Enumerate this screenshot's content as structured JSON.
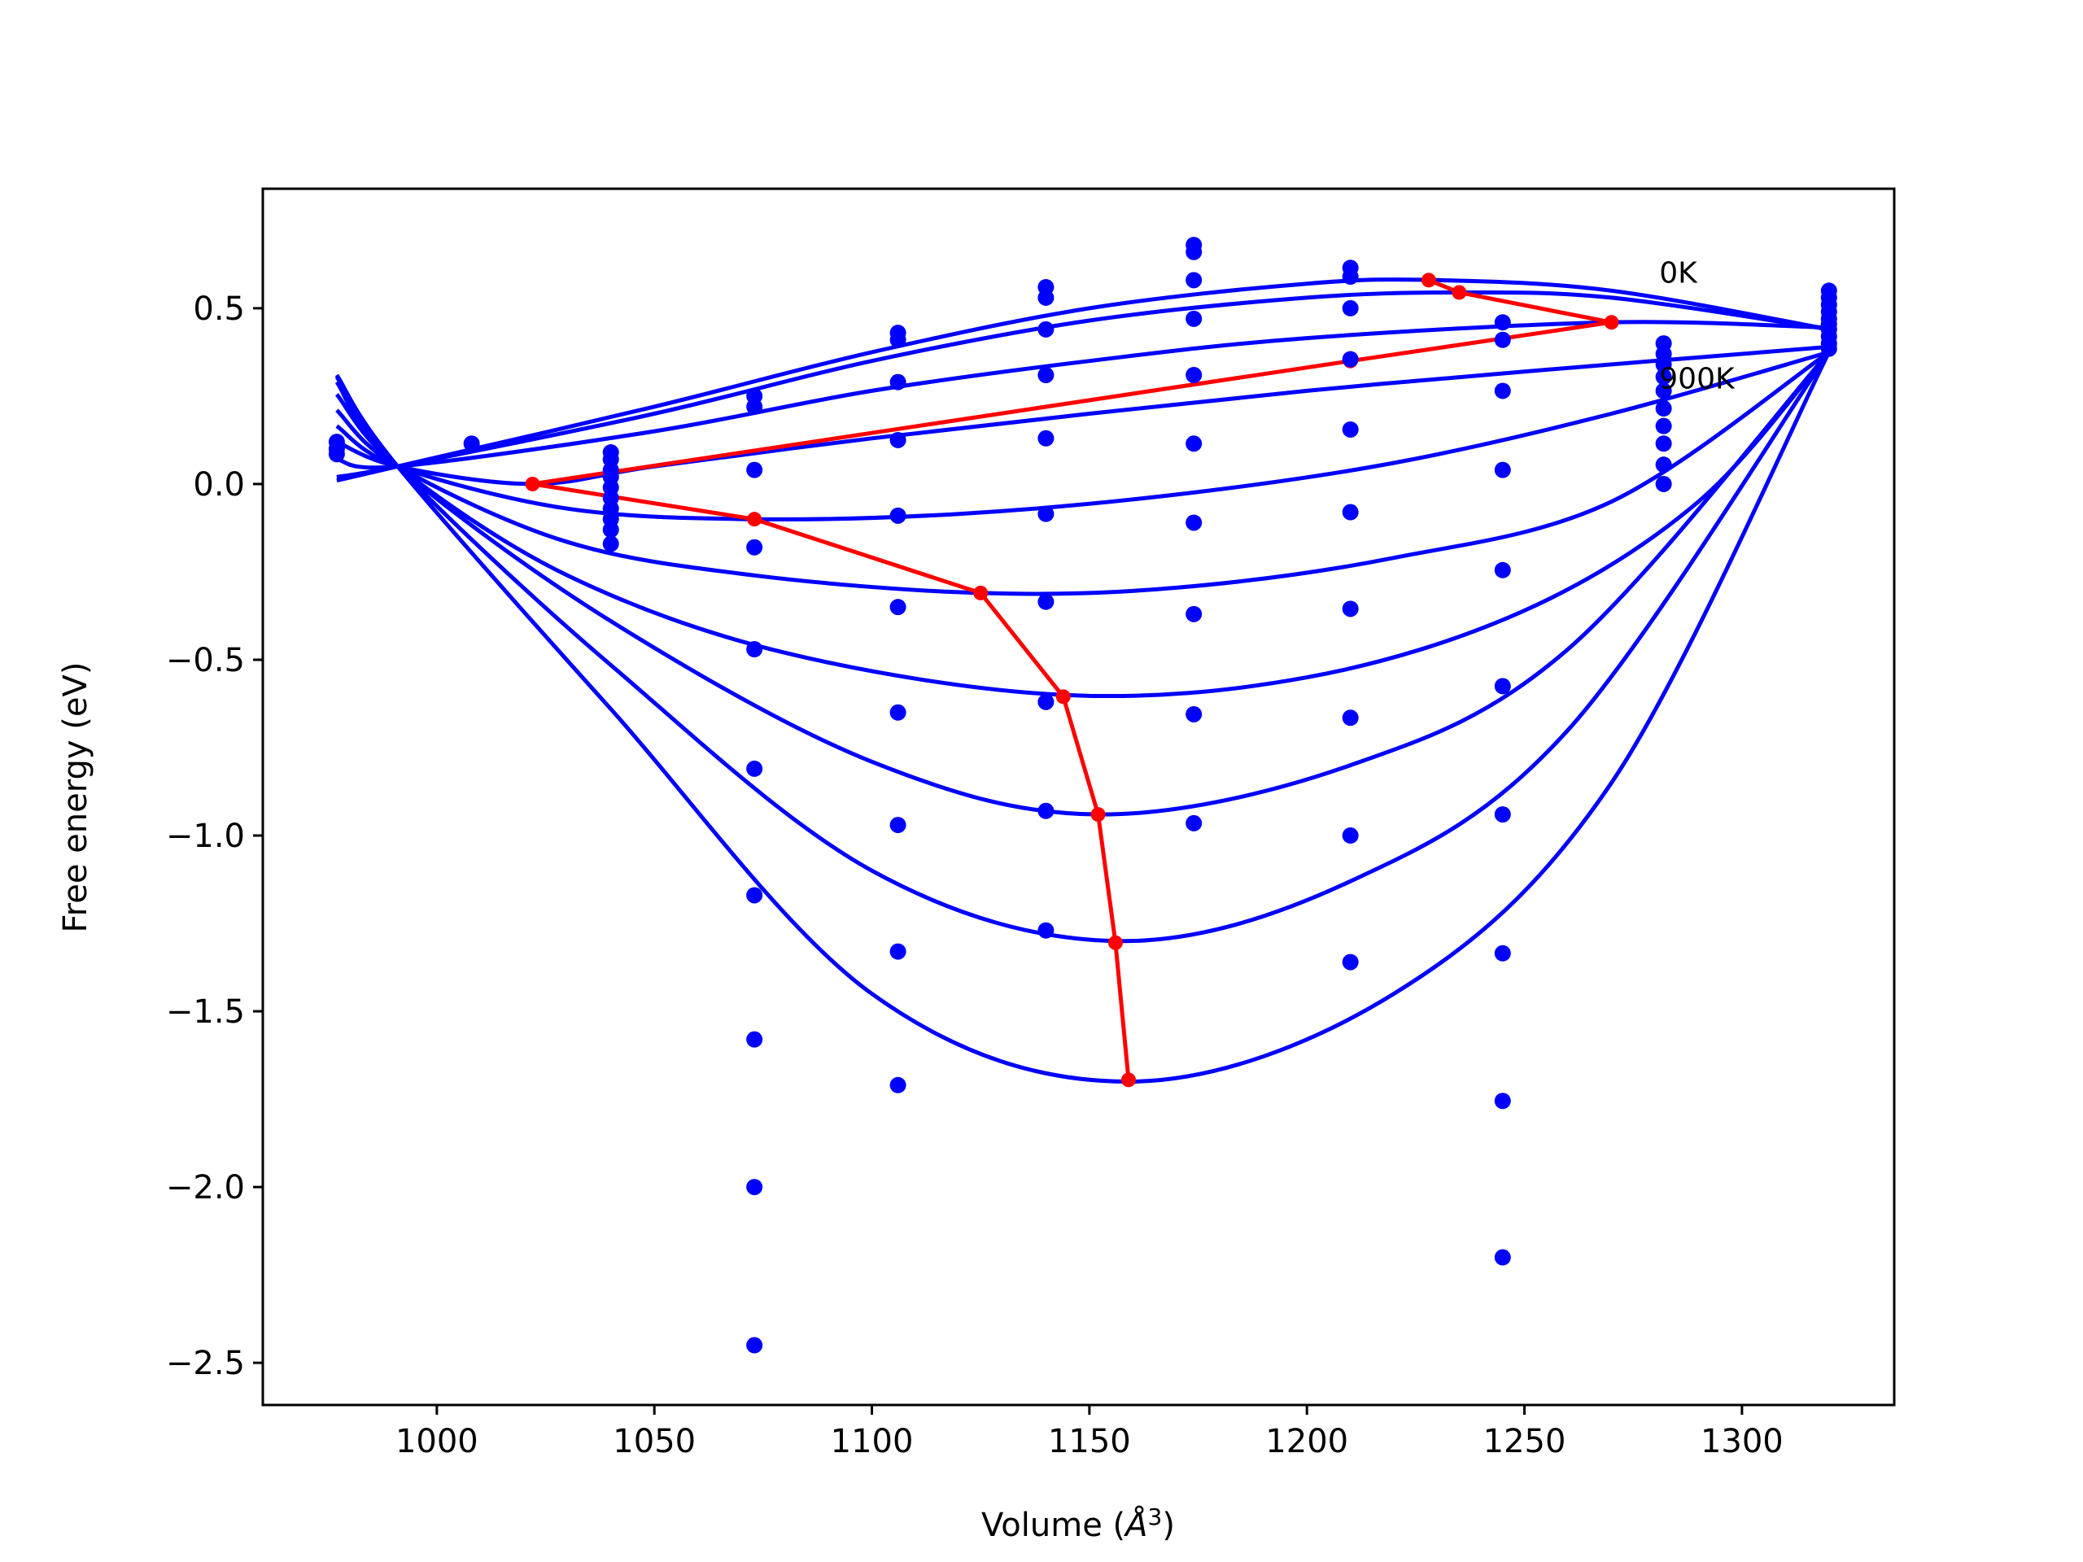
{
  "chart_data": {
    "type": "scatter",
    "xlabel": "Volume (",
    "xlabel_unit": "Å",
    "xlabel_sup": "3",
    "xlabel_close": ")",
    "ylabel": "Free energy (eV)",
    "xlim": [
      960,
      1335
    ],
    "ylim": [
      -2.62,
      0.84
    ],
    "grid": false,
    "xticks": [
      1000,
      1050,
      1100,
      1150,
      1200,
      1250,
      1300
    ],
    "xtick_labels": [
      "1000",
      "1050",
      "1100",
      "1150",
      "1200",
      "1250",
      "1300"
    ],
    "yticks": [
      0.5,
      0.0,
      -0.5,
      -1.0,
      -1.5,
      -2.0,
      -2.5
    ],
    "ytick_labels": [
      "0.5",
      "0.0",
      "−0.5",
      "−1.0",
      "−1.5",
      "−2.0",
      "−2.5"
    ],
    "annotations": [
      {
        "text": "0K",
        "x": 1281,
        "y": 0.6
      },
      {
        "text": "900K",
        "x": 1281,
        "y": 0.3
      }
    ],
    "colors": {
      "points": "#0000ff",
      "curves": "#0000ff",
      "minimum_path": "#ff0000",
      "axes": "#000000"
    },
    "points": [
      {
        "x": 977,
        "y": 0.085
      },
      {
        "x": 977,
        "y": 0.1
      },
      {
        "x": 977,
        "y": 0.12
      },
      {
        "x": 1008,
        "y": 0.115
      },
      {
        "x": 1040,
        "y": 0.09
      },
      {
        "x": 1040,
        "y": 0.07
      },
      {
        "x": 1040,
        "y": 0.04
      },
      {
        "x": 1040,
        "y": 0.02
      },
      {
        "x": 1040,
        "y": -0.01
      },
      {
        "x": 1040,
        "y": -0.04
      },
      {
        "x": 1040,
        "y": -0.07
      },
      {
        "x": 1040,
        "y": -0.1
      },
      {
        "x": 1040,
        "y": -0.13
      },
      {
        "x": 1040,
        "y": -0.17
      },
      {
        "x": 1073,
        "y": 0.25
      },
      {
        "x": 1073,
        "y": 0.22
      },
      {
        "x": 1073,
        "y": 0.04
      },
      {
        "x": 1073,
        "y": -0.18
      },
      {
        "x": 1073,
        "y": -0.47
      },
      {
        "x": 1073,
        "y": -0.81
      },
      {
        "x": 1073,
        "y": -1.17
      },
      {
        "x": 1073,
        "y": -1.58
      },
      {
        "x": 1073,
        "y": -2.0
      },
      {
        "x": 1073,
        "y": -2.45
      },
      {
        "x": 1106,
        "y": 0.43
      },
      {
        "x": 1106,
        "y": 0.41
      },
      {
        "x": 1106,
        "y": 0.29
      },
      {
        "x": 1106,
        "y": 0.125
      },
      {
        "x": 1106,
        "y": -0.09
      },
      {
        "x": 1106,
        "y": -0.35
      },
      {
        "x": 1106,
        "y": -0.65
      },
      {
        "x": 1106,
        "y": -0.97
      },
      {
        "x": 1106,
        "y": -1.33
      },
      {
        "x": 1106,
        "y": -1.71
      },
      {
        "x": 1140,
        "y": 0.56
      },
      {
        "x": 1140,
        "y": 0.53
      },
      {
        "x": 1140,
        "y": 0.44
      },
      {
        "x": 1140,
        "y": 0.31
      },
      {
        "x": 1140,
        "y": 0.13
      },
      {
        "x": 1140,
        "y": -0.085
      },
      {
        "x": 1140,
        "y": -0.335
      },
      {
        "x": 1140,
        "y": -0.62
      },
      {
        "x": 1140,
        "y": -0.93
      },
      {
        "x": 1140,
        "y": -1.27
      },
      {
        "x": 1174,
        "y": 0.68
      },
      {
        "x": 1174,
        "y": 0.66
      },
      {
        "x": 1174,
        "y": 0.58
      },
      {
        "x": 1174,
        "y": 0.47
      },
      {
        "x": 1174,
        "y": 0.31
      },
      {
        "x": 1174,
        "y": 0.115
      },
      {
        "x": 1174,
        "y": -0.11
      },
      {
        "x": 1174,
        "y": -0.37
      },
      {
        "x": 1174,
        "y": -0.655
      },
      {
        "x": 1174,
        "y": -0.965
      },
      {
        "x": 1210,
        "y": 0.615
      },
      {
        "x": 1210,
        "y": 0.59
      },
      {
        "x": 1210,
        "y": 0.5
      },
      {
        "x": 1210,
        "y": 0.355
      },
      {
        "x": 1210,
        "y": 0.155
      },
      {
        "x": 1210,
        "y": -0.08
      },
      {
        "x": 1210,
        "y": -0.355
      },
      {
        "x": 1210,
        "y": -0.665
      },
      {
        "x": 1210,
        "y": -1.0
      },
      {
        "x": 1210,
        "y": -1.36
      },
      {
        "x": 1245,
        "y": 0.46
      },
      {
        "x": 1245,
        "y": 0.41
      },
      {
        "x": 1245,
        "y": 0.265
      },
      {
        "x": 1245,
        "y": 0.04
      },
      {
        "x": 1245,
        "y": -0.245
      },
      {
        "x": 1245,
        "y": -0.575
      },
      {
        "x": 1245,
        "y": -0.94
      },
      {
        "x": 1245,
        "y": -1.335
      },
      {
        "x": 1245,
        "y": -1.755
      },
      {
        "x": 1245,
        "y": -2.2
      },
      {
        "x": 1282,
        "y": 0.4
      },
      {
        "x": 1282,
        "y": 0.37
      },
      {
        "x": 1282,
        "y": 0.34
      },
      {
        "x": 1282,
        "y": 0.305
      },
      {
        "x": 1282,
        "y": 0.265
      },
      {
        "x": 1282,
        "y": 0.215
      },
      {
        "x": 1282,
        "y": 0.165
      },
      {
        "x": 1282,
        "y": 0.115
      },
      {
        "x": 1282,
        "y": 0.055
      },
      {
        "x": 1282,
        "y": 0.0
      },
      {
        "x": 1320,
        "y": 0.55
      },
      {
        "x": 1320,
        "y": 0.53
      },
      {
        "x": 1320,
        "y": 0.51
      },
      {
        "x": 1320,
        "y": 0.49
      },
      {
        "x": 1320,
        "y": 0.47
      },
      {
        "x": 1320,
        "y": 0.455
      },
      {
        "x": 1320,
        "y": 0.44
      },
      {
        "x": 1320,
        "y": 0.42
      },
      {
        "x": 1320,
        "y": 0.4
      },
      {
        "x": 1320,
        "y": 0.385
      }
    ],
    "series": [
      {
        "values": [
          [
            977,
            0.01
          ],
          [
            991,
            0.05
          ],
          [
            1050,
            0.22
          ],
          [
            1100,
            0.375
          ],
          [
            1150,
            0.5
          ],
          [
            1200,
            0.57
          ],
          [
            1230,
            0.58
          ],
          [
            1270,
            0.55
          ],
          [
            1320,
            0.44
          ]
        ]
      },
      {
        "values": [
          [
            977,
            0.02
          ],
          [
            991,
            0.05
          ],
          [
            1050,
            0.2
          ],
          [
            1100,
            0.35
          ],
          [
            1150,
            0.465
          ],
          [
            1200,
            0.53
          ],
          [
            1235,
            0.545
          ],
          [
            1270,
            0.53
          ],
          [
            1320,
            0.44
          ]
        ]
      },
      {
        "values": [
          [
            977,
            0.07
          ],
          [
            991,
            0.05
          ],
          [
            1050,
            0.15
          ],
          [
            1100,
            0.265
          ],
          [
            1150,
            0.35
          ],
          [
            1200,
            0.415
          ],
          [
            1270,
            0.46
          ],
          [
            1320,
            0.445
          ]
        ]
      },
      {
        "values": [
          [
            977,
            0.12
          ],
          [
            991,
            0.05
          ],
          [
            1022,
            0.0
          ],
          [
            1050,
            0.05
          ],
          [
            1100,
            0.13
          ],
          [
            1150,
            0.2
          ],
          [
            1200,
            0.265
          ],
          [
            1250,
            0.32
          ],
          [
            1320,
            0.39
          ]
        ]
      },
      {
        "values": [
          [
            977,
            0.165
          ],
          [
            991,
            0.05
          ],
          [
            1030,
            -0.07
          ],
          [
            1073,
            -0.1
          ],
          [
            1120,
            -0.085
          ],
          [
            1170,
            -0.03
          ],
          [
            1220,
            0.06
          ],
          [
            1270,
            0.2
          ],
          [
            1320,
            0.375
          ]
        ]
      },
      {
        "values": [
          [
            977,
            0.21
          ],
          [
            991,
            0.05
          ],
          [
            1030,
            -0.165
          ],
          [
            1073,
            -0.26
          ],
          [
            1125,
            -0.31
          ],
          [
            1170,
            -0.295
          ],
          [
            1220,
            -0.21
          ],
          [
            1270,
            -0.05
          ],
          [
            1320,
            0.375
          ]
        ]
      },
      {
        "values": [
          [
            977,
            0.255
          ],
          [
            991,
            0.05
          ],
          [
            1030,
            -0.26
          ],
          [
            1080,
            -0.48
          ],
          [
            1144,
            -0.6
          ],
          [
            1200,
            -0.55
          ],
          [
            1250,
            -0.36
          ],
          [
            1290,
            -0.05
          ],
          [
            1320,
            0.375
          ]
        ]
      },
      {
        "values": [
          [
            977,
            0.29
          ],
          [
            991,
            0.05
          ],
          [
            1040,
            -0.39
          ],
          [
            1100,
            -0.79
          ],
          [
            1152,
            -0.94
          ],
          [
            1210,
            -0.8
          ],
          [
            1260,
            -0.47
          ],
          [
            1320,
            0.375
          ]
        ]
      },
      {
        "values": [
          [
            977,
            0.305
          ],
          [
            991,
            0.05
          ],
          [
            1040,
            -0.515
          ],
          [
            1100,
            -1.1
          ],
          [
            1156,
            -1.3
          ],
          [
            1210,
            -1.13
          ],
          [
            1260,
            -0.7
          ],
          [
            1320,
            0.375
          ]
        ]
      },
      {
        "values": [
          [
            977,
            0.31
          ],
          [
            991,
            0.05
          ],
          [
            1040,
            -0.64
          ],
          [
            1100,
            -1.45
          ],
          [
            1159,
            -1.7
          ],
          [
            1220,
            -1.45
          ],
          [
            1270,
            -0.85
          ],
          [
            1320,
            0.375
          ]
        ]
      }
    ],
    "minimum_path": [
      [
        1228,
        0.58
      ],
      [
        1235,
        0.545
      ],
      [
        1270,
        0.46
      ],
      [
        1210,
        0.35
      ],
      [
        1022,
        0.0
      ],
      [
        1073,
        -0.1
      ],
      [
        1125,
        -0.31
      ],
      [
        1144,
        -0.605
      ],
      [
        1152,
        -0.94
      ],
      [
        1156,
        -1.305
      ],
      [
        1159,
        -1.695
      ]
    ]
  }
}
